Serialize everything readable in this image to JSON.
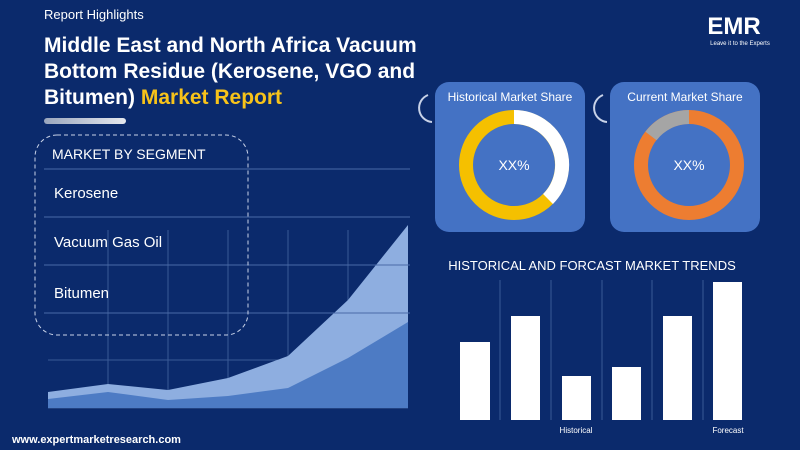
{
  "header": {
    "label": "Report Highlights",
    "title_lines": [
      "Middle East and North Africa Vacuum",
      "Bottom Residue (Kerosene, VGO and",
      "Bitumen)"
    ],
    "title_highlight": "Market Report"
  },
  "logo": {
    "name": "EMR",
    "tagline": "Leave it to the Experts"
  },
  "segments": {
    "heading": "MARKET BY SEGMENT",
    "items": [
      "Kerosene",
      "Vacuum Gas Oil",
      "Bitumen"
    ]
  },
  "cards": [
    {
      "title": "Historical Market Share",
      "value": "XX%"
    },
    {
      "title": "Current Market Share",
      "value": "XX%"
    }
  ],
  "trends": {
    "title": "HISTORICAL AND FORCAST MARKET TRENDS",
    "labels": [
      "Historical",
      "Forecast"
    ]
  },
  "footer": {
    "url": "www.expertmarketresearch.com"
  }
}
